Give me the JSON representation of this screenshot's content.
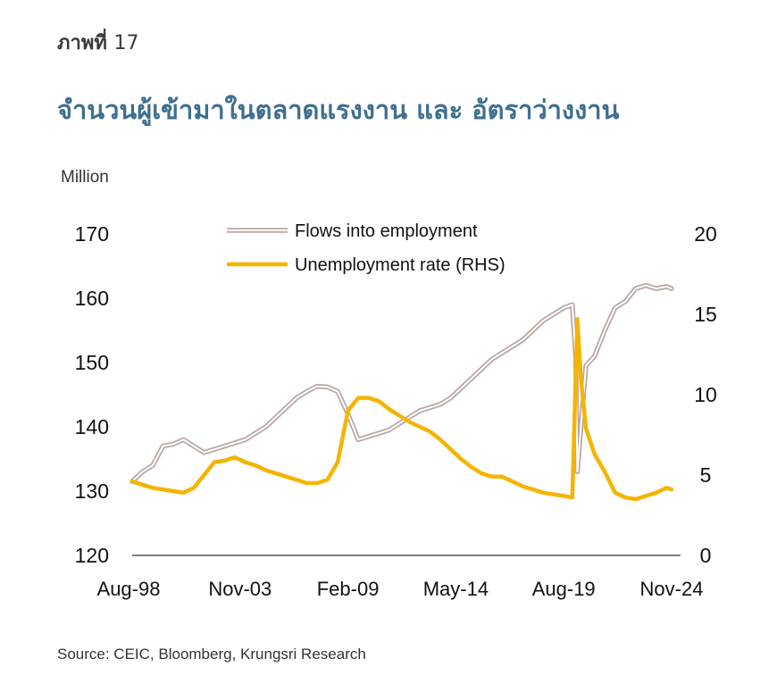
{
  "figure_label": "ภาพที่",
  "figure_number": "17",
  "title": "จำนวนผู้เข้ามาในตลาดแรงงาน และ อัตราว่างงาน",
  "unit_label": "Million",
  "source": "Source: CEIC, Bloomberg, Krungsri Research",
  "colors": {
    "flows": "#b8a8a4",
    "unemployment": "#f5b400",
    "title": "#3d6f8f",
    "axis": "#555555"
  },
  "chart_data": {
    "type": "line",
    "x_ticks": [
      "Aug-98",
      "Nov-03",
      "Feb-09",
      "May-14",
      "Aug-19",
      "Nov-24"
    ],
    "y_left": {
      "ticks": [
        120,
        130,
        140,
        150,
        160,
        170
      ],
      "range": [
        120,
        170
      ]
    },
    "y_right": {
      "ticks": [
        0,
        5,
        10,
        15,
        20
      ],
      "range": [
        0,
        20
      ]
    },
    "legend_position": "top-center",
    "grid": false,
    "series": [
      {
        "name": "Flows into employment",
        "axis": "left",
        "style": "double-line",
        "points": [
          [
            "1998-08",
            131.5
          ],
          [
            "1999-02",
            133
          ],
          [
            "1999-08",
            134
          ],
          [
            "2000-02",
            137
          ],
          [
            "2000-08",
            137.3
          ],
          [
            "2001-02",
            138
          ],
          [
            "2001-08",
            137
          ],
          [
            "2002-02",
            136
          ],
          [
            "2002-08",
            136.5
          ],
          [
            "2003-02",
            137
          ],
          [
            "2003-08",
            137.5
          ],
          [
            "2004-02",
            138
          ],
          [
            "2004-08",
            139
          ],
          [
            "2005-02",
            140
          ],
          [
            "2005-08",
            141.5
          ],
          [
            "2006-02",
            143
          ],
          [
            "2006-08",
            144.5
          ],
          [
            "2007-02",
            145.5
          ],
          [
            "2007-08",
            146.3
          ],
          [
            "2008-02",
            146.2
          ],
          [
            "2008-08",
            145.5
          ],
          [
            "2009-02",
            142
          ],
          [
            "2009-08",
            138
          ],
          [
            "2010-02",
            138.5
          ],
          [
            "2010-08",
            139
          ],
          [
            "2011-02",
            139.5
          ],
          [
            "2011-08",
            140.5
          ],
          [
            "2012-02",
            141.5
          ],
          [
            "2012-08",
            142.5
          ],
          [
            "2013-02",
            143
          ],
          [
            "2013-08",
            143.5
          ],
          [
            "2014-02",
            144.5
          ],
          [
            "2014-08",
            146
          ],
          [
            "2015-02",
            147.5
          ],
          [
            "2015-08",
            149
          ],
          [
            "2016-02",
            150.5
          ],
          [
            "2016-08",
            151.5
          ],
          [
            "2017-02",
            152.5
          ],
          [
            "2017-08",
            153.5
          ],
          [
            "2018-02",
            155
          ],
          [
            "2018-08",
            156.5
          ],
          [
            "2019-02",
            157.5
          ],
          [
            "2019-08",
            158.5
          ],
          [
            "2020-01",
            159
          ],
          [
            "2020-03",
            151
          ],
          [
            "2020-04",
            133
          ],
          [
            "2020-06",
            140
          ],
          [
            "2020-09",
            149.5
          ],
          [
            "2021-02",
            151
          ],
          [
            "2021-08",
            155
          ],
          [
            "2022-02",
            158.5
          ],
          [
            "2022-08",
            159.5
          ],
          [
            "2023-02",
            161.5
          ],
          [
            "2023-08",
            162
          ],
          [
            "2024-02",
            161.5
          ],
          [
            "2024-08",
            161.8
          ],
          [
            "2024-11",
            161.5
          ]
        ]
      },
      {
        "name": "Unemployment rate (RHS)",
        "axis": "right",
        "style": "solid",
        "points": [
          [
            "1998-08",
            4.6
          ],
          [
            "1999-02",
            4.4
          ],
          [
            "1999-08",
            4.2
          ],
          [
            "2000-02",
            4.1
          ],
          [
            "2000-08",
            4.0
          ],
          [
            "2001-02",
            3.9
          ],
          [
            "2001-08",
            4.2
          ],
          [
            "2002-02",
            5.0
          ],
          [
            "2002-08",
            5.8
          ],
          [
            "2003-02",
            5.9
          ],
          [
            "2003-08",
            6.1
          ],
          [
            "2004-02",
            5.8
          ],
          [
            "2004-08",
            5.6
          ],
          [
            "2005-02",
            5.3
          ],
          [
            "2005-08",
            5.1
          ],
          [
            "2006-02",
            4.9
          ],
          [
            "2006-08",
            4.7
          ],
          [
            "2007-02",
            4.5
          ],
          [
            "2007-08",
            4.5
          ],
          [
            "2008-02",
            4.7
          ],
          [
            "2008-08",
            5.8
          ],
          [
            "2009-02",
            9.0
          ],
          [
            "2009-08",
            9.8
          ],
          [
            "2010-02",
            9.8
          ],
          [
            "2010-08",
            9.6
          ],
          [
            "2011-02",
            9.1
          ],
          [
            "2011-08",
            8.7
          ],
          [
            "2012-02",
            8.3
          ],
          [
            "2012-08",
            8.0
          ],
          [
            "2013-02",
            7.7
          ],
          [
            "2013-08",
            7.2
          ],
          [
            "2014-02",
            6.6
          ],
          [
            "2014-08",
            6.0
          ],
          [
            "2015-02",
            5.5
          ],
          [
            "2015-08",
            5.1
          ],
          [
            "2016-02",
            4.9
          ],
          [
            "2016-08",
            4.9
          ],
          [
            "2017-02",
            4.6
          ],
          [
            "2017-08",
            4.3
          ],
          [
            "2018-02",
            4.1
          ],
          [
            "2018-08",
            3.9
          ],
          [
            "2019-02",
            3.8
          ],
          [
            "2019-08",
            3.7
          ],
          [
            "2020-01",
            3.6
          ],
          [
            "2020-04",
            14.7
          ],
          [
            "2020-06",
            11.0
          ],
          [
            "2020-09",
            7.9
          ],
          [
            "2021-02",
            6.3
          ],
          [
            "2021-08",
            5.2
          ],
          [
            "2022-02",
            3.9
          ],
          [
            "2022-08",
            3.6
          ],
          [
            "2023-02",
            3.5
          ],
          [
            "2023-08",
            3.7
          ],
          [
            "2024-02",
            3.9
          ],
          [
            "2024-08",
            4.2
          ],
          [
            "2024-11",
            4.1
          ]
        ]
      }
    ]
  }
}
